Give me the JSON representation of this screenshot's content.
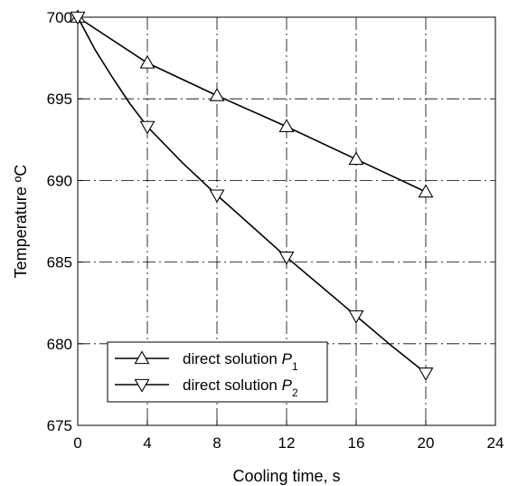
{
  "chart_data": {
    "type": "line",
    "xlabel": "Cooling time, s",
    "ylabel": "Temperature ºC",
    "xlim": [
      0,
      24
    ],
    "ylim": [
      675,
      700
    ],
    "x_ticks": [
      0,
      4,
      8,
      12,
      16,
      20,
      24
    ],
    "y_ticks": [
      675,
      680,
      685,
      690,
      695,
      700
    ],
    "grid": true,
    "legend_position": "bottom-left",
    "series": [
      {
        "name": "direct solution P",
        "subscript": "1",
        "marker": "triangle-up",
        "x": [
          0,
          4,
          8,
          12,
          16,
          20
        ],
        "y": [
          700,
          697.2,
          695.2,
          693.3,
          691.3,
          689.3
        ]
      },
      {
        "name": "direct solution P",
        "subscript": "2",
        "marker": "triangle-down",
        "x": [
          0,
          4,
          8,
          12,
          16,
          20
        ],
        "y": [
          700,
          693.3,
          689.1,
          685.3,
          681.7,
          678.2
        ],
        "curve_x": [
          0,
          0.5,
          1,
          2,
          3,
          4,
          6,
          8,
          10,
          12,
          14,
          16,
          18,
          20
        ],
        "curve_y": [
          700,
          699.0,
          698.0,
          696.3,
          694.7,
          693.3,
          691.1,
          689.1,
          687.2,
          685.3,
          683.5,
          681.7,
          679.9,
          678.2
        ]
      }
    ]
  }
}
